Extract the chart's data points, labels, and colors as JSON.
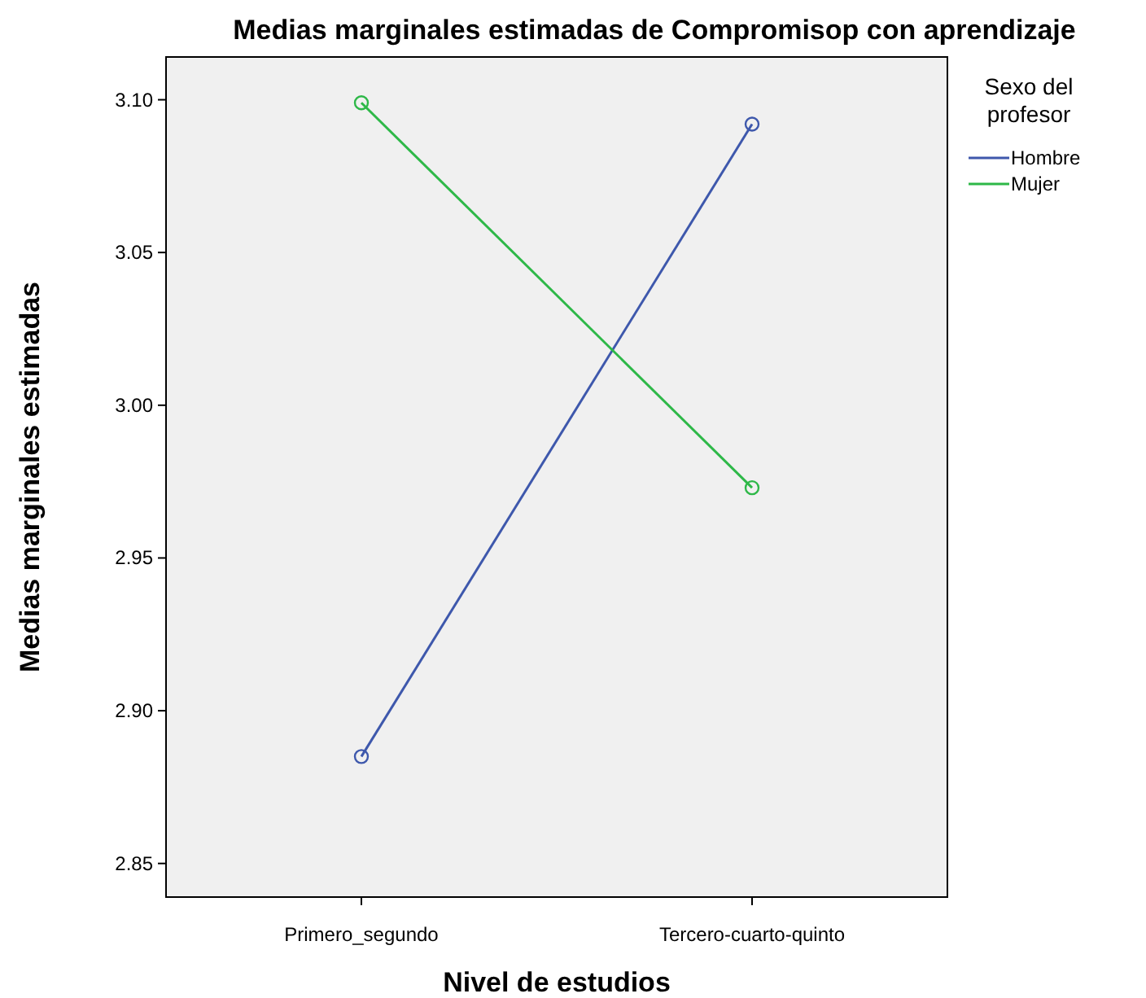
{
  "chart_data": {
    "type": "line",
    "title": "Medias marginales estimadas de Compromisop con aprendizaje",
    "xlabel": "Nivel de estudios",
    "ylabel": "Medias marginales estimadas",
    "legend_title": "Sexo del profesor",
    "categories": [
      "Primero_segundo",
      "Tercero-cuarto-quinto"
    ],
    "series": [
      {
        "name": "Hombre",
        "color": "#3e58ac",
        "values": [
          2.885,
          3.092
        ]
      },
      {
        "name": "Mujer",
        "color": "#2eb848",
        "values": [
          3.099,
          2.973
        ]
      }
    ],
    "ylim": [
      2.839,
      3.114
    ],
    "yticks": [
      {
        "value": 2.85,
        "label": "2.85"
      },
      {
        "value": 2.9,
        "label": "2.90"
      },
      {
        "value": 2.95,
        "label": "2.95"
      },
      {
        "value": 3,
        "label": "3.00"
      },
      {
        "value": 3.05,
        "label": "3.05"
      },
      {
        "value": 3.1,
        "label": "3.10"
      }
    ],
    "legend": "right",
    "marker": "circle",
    "line_style": "solid",
    "grid": false
  }
}
